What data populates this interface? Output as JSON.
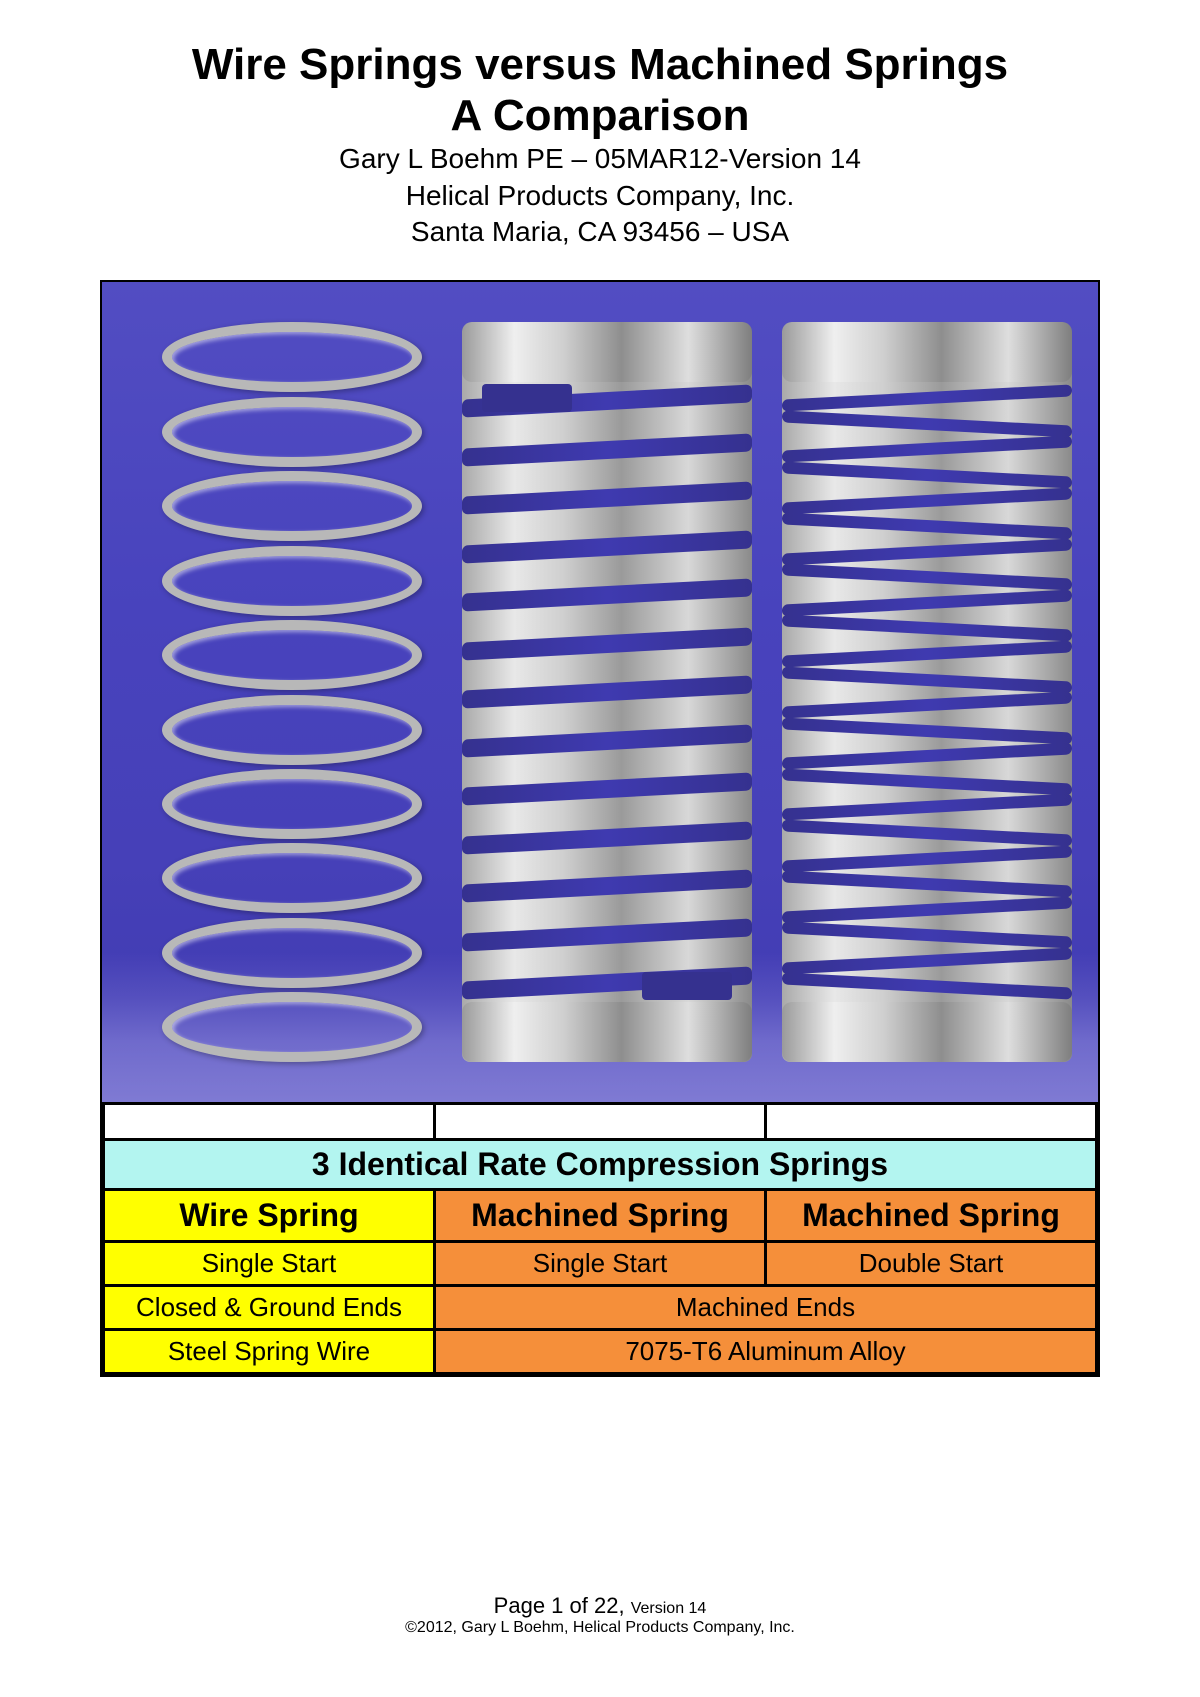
{
  "header": {
    "title_line1": "Wire Springs versus Machined Springs",
    "title_line2": "A Comparison",
    "byline": "Gary L Boehm PE – 05MAR12-Version 14",
    "company": "Helical Products Company, Inc.",
    "location": "Santa Maria, CA 93456 – USA"
  },
  "figure": {
    "background_color": "#4640b8",
    "spring_metal_light": "#e8e8e8",
    "spring_metal_dark": "#8a8a8a",
    "wire_color": "#b8b8b8",
    "wire_coils": 10,
    "machined1_slots": 13,
    "machined2_slots": 24
  },
  "table": {
    "colors": {
      "caption_bg": "#b3f5f0",
      "yellow": "#ffff00",
      "orange": "#f58f3a",
      "border": "#000000"
    },
    "caption": "3 Identical Rate Compression Springs",
    "headers": [
      "Wire Spring",
      "Machined Spring",
      "Machined Spring"
    ],
    "row_start": [
      "Single Start",
      "Single Start",
      "Double Start"
    ],
    "row_ends": {
      "wire": "Closed & Ground Ends",
      "machined": "Machined Ends"
    },
    "row_material": {
      "wire": "Steel Spring Wire",
      "machined": "7075-T6 Aluminum Alloy"
    }
  },
  "footer": {
    "page_prefix": "Page ",
    "page_current": "1",
    "page_of": " of ",
    "page_total": "22",
    "page_sep": ", ",
    "version_label": "Version 14",
    "copyright": "©2012, Gary L Boehm, Helical Products Company, Inc."
  }
}
